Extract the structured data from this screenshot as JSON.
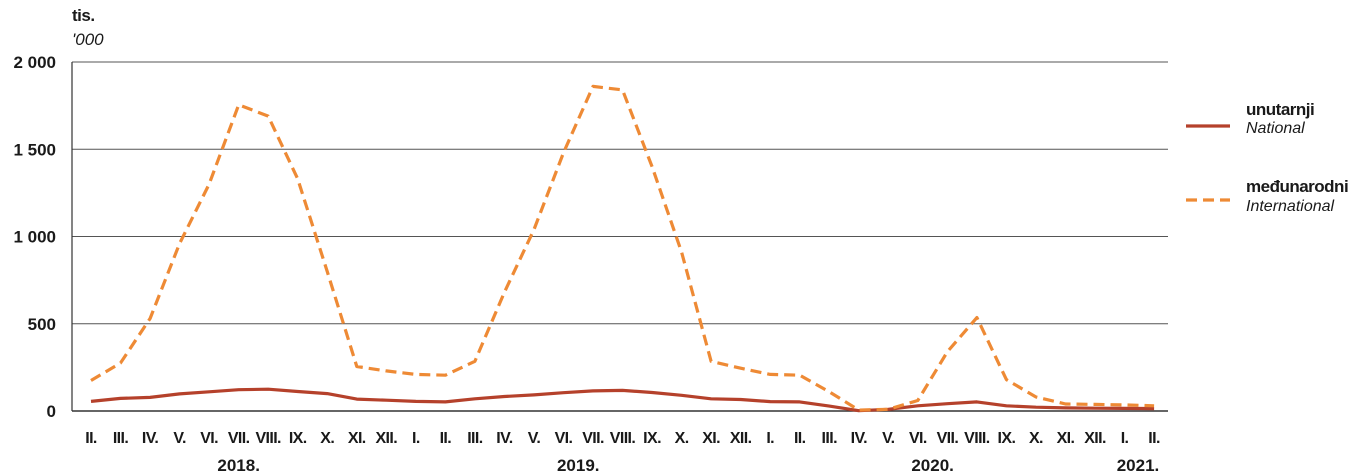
{
  "chart_data": {
    "type": "line",
    "unit_label": "tis.",
    "unit_label_en": "'000",
    "ylim": [
      0,
      2000
    ],
    "y_ticks": [
      0,
      500,
      1000,
      1500,
      2000
    ],
    "y_tick_labels": [
      "0",
      "500",
      "1 000",
      "1 500",
      "2 000"
    ],
    "grid": true,
    "legend_position": "right",
    "categories": [
      "II.",
      "III.",
      "IV.",
      "V.",
      "VI.",
      "VII.",
      "VIII.",
      "IX.",
      "X.",
      "XI.",
      "XII.",
      "I.",
      "II.",
      "III.",
      "IV.",
      "V.",
      "VI.",
      "VII.",
      "VIII.",
      "IX.",
      "X.",
      "XI.",
      "XII.",
      "I.",
      "II.",
      "III.",
      "IV.",
      "V.",
      "VI.",
      "VII.",
      "VIII.",
      "IX.",
      "X.",
      "XI.",
      "XII.",
      "I.",
      "II."
    ],
    "years": [
      {
        "label": "2018.",
        "from": 0,
        "to": 10
      },
      {
        "label": "2019.",
        "from": 11,
        "to": 22
      },
      {
        "label": "2020.",
        "from": 23,
        "to": 34
      },
      {
        "label": "2021.",
        "from": 35,
        "to": 36
      }
    ],
    "series": [
      {
        "name": "unutarnji",
        "name_en": "National",
        "color": "#b5412b",
        "style": "solid",
        "values": [
          55,
          72,
          78,
          98,
          110,
          122,
          125,
          112,
          100,
          68,
          62,
          55,
          52,
          70,
          83,
          92,
          105,
          115,
          118,
          106,
          90,
          70,
          66,
          54,
          52,
          28,
          2,
          10,
          30,
          42,
          52,
          30,
          22,
          18,
          16,
          15,
          14
        ]
      },
      {
        "name": "međunarodni",
        "name_en": "International",
        "color": "#ee8a35",
        "style": "dashed",
        "values": [
          175,
          275,
          530,
          960,
          1300,
          1755,
          1690,
          1330,
          800,
          255,
          230,
          210,
          205,
          285,
          680,
          1040,
          1480,
          1860,
          1840,
          1400,
          910,
          285,
          245,
          210,
          205,
          110,
          5,
          10,
          60,
          340,
          535,
          180,
          80,
          40,
          38,
          35,
          30
        ]
      }
    ]
  }
}
